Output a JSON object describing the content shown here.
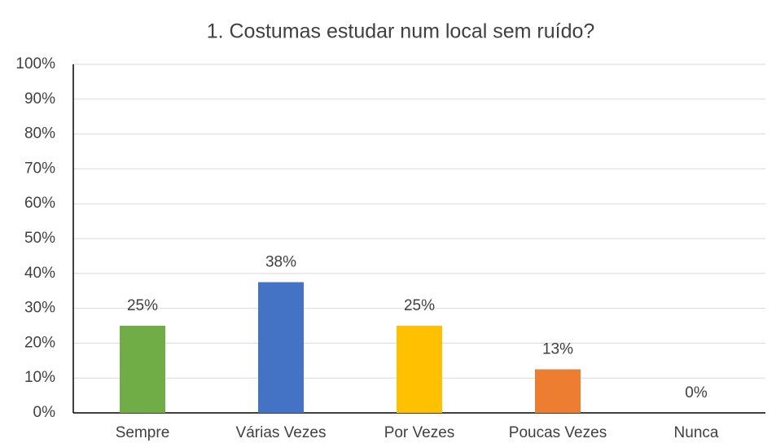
{
  "chart_data": {
    "type": "bar",
    "title": "1. Costumas estudar num local sem ruído?",
    "categories": [
      "Sempre",
      "Várias Vezes",
      "Por Vezes",
      "Poucas Vezes",
      "Nunca"
    ],
    "values": [
      25,
      37.5,
      25,
      12.5,
      0
    ],
    "value_labels": [
      "25%",
      "38%",
      "25%",
      "13%",
      "0%"
    ],
    "colors": [
      "#70ad47",
      "#4472c4",
      "#ffc000",
      "#ed7d31",
      "#a5a5a5"
    ],
    "ylim": [
      0,
      100
    ],
    "yticks": [
      {
        "value": 0,
        "label": "0%"
      },
      {
        "value": 10,
        "label": "10%"
      },
      {
        "value": 20,
        "label": "20%"
      },
      {
        "value": 30,
        "label": "30%"
      },
      {
        "value": 40,
        "label": "40%"
      },
      {
        "value": 50,
        "label": "50%"
      },
      {
        "value": 60,
        "label": "60%"
      },
      {
        "value": 70,
        "label": "70%"
      },
      {
        "value": 80,
        "label": "80%"
      },
      {
        "value": 90,
        "label": "90%"
      },
      {
        "value": 100,
        "label": "100%"
      }
    ],
    "grid": true
  }
}
